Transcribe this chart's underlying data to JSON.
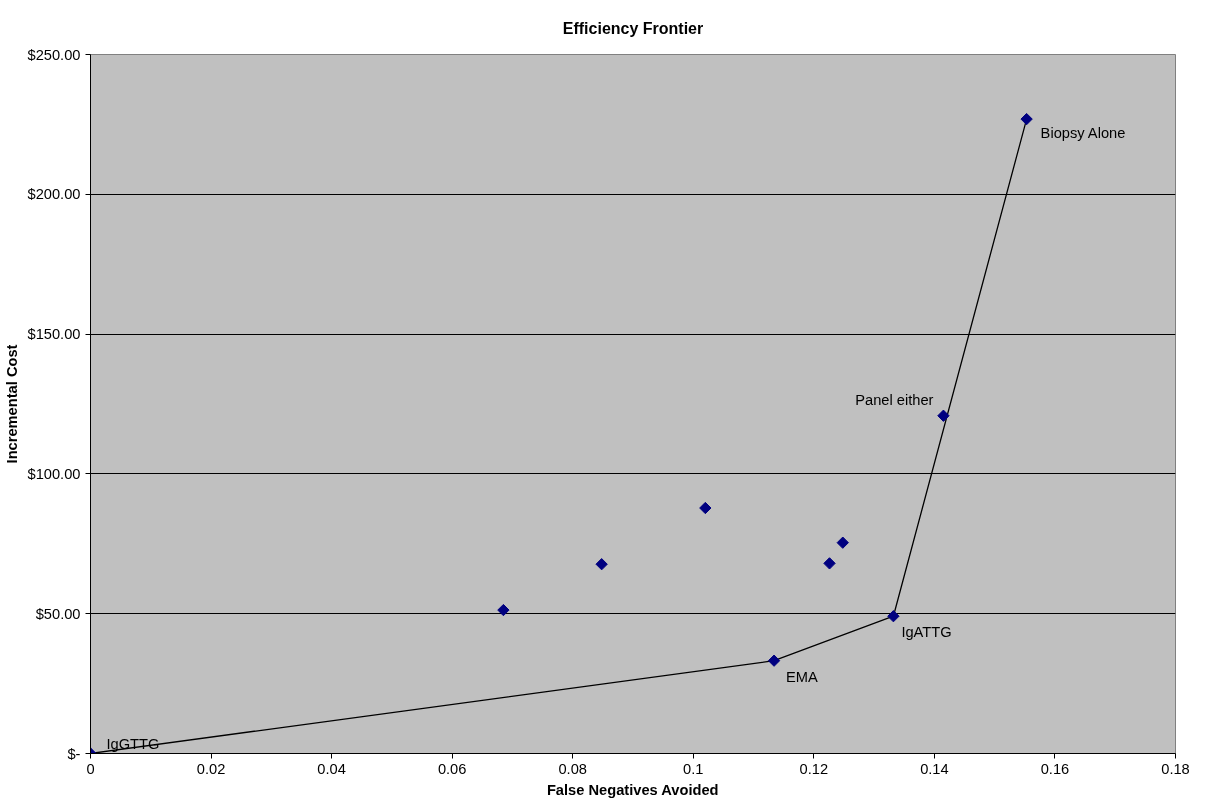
{
  "chart_data": {
    "type": "scatter",
    "title": "Efficiency Frontier",
    "xlabel": "False Negatives Avoided",
    "ylabel": "Incremental Cost",
    "xlim": [
      0,
      0.18
    ],
    "xticks": [
      0,
      0.02,
      0.04,
      0.06,
      0.08,
      0.1,
      0.12,
      0.14,
      0.16,
      0.18
    ],
    "ylim": [
      0,
      250
    ],
    "yticks": [
      {
        "value": 0,
        "label": "$-"
      },
      {
        "value": 50,
        "label": "$50.00"
      },
      {
        "value": 100,
        "label": "$100.00"
      },
      {
        "value": 150,
        "label": "$150.00"
      },
      {
        "value": 200,
        "label": "$200.00"
      },
      {
        "value": 250,
        "label": "$250.00"
      }
    ],
    "grid": "y",
    "marker": "diamond",
    "series": [
      {
        "type": "line",
        "color": "#000000",
        "marker": "none",
        "line_style": "solid",
        "x": [
          0,
          0.1134,
          0.1332,
          0.1553
        ],
        "values": [
          0,
          33.2,
          49.1,
          226.9
        ]
      },
      {
        "color": "#000080",
        "x": [
          0,
          0.0685,
          0.0848,
          0.102,
          0.1226,
          0.1248,
          0.1134,
          0.1332,
          0.1415,
          0.1553
        ],
        "values": [
          0,
          51.3,
          67.7,
          87.8,
          68,
          75.4,
          33.2,
          49.1,
          120.8,
          226.9
        ]
      }
    ],
    "annotations": [
      {
        "text": "IgGTTG",
        "x": 0,
        "y": 0
      },
      {
        "text": "EMA",
        "x": 0.1134,
        "y": 33.2
      },
      {
        "text": "IgATTG",
        "x": 0.1332,
        "y": 49.1
      },
      {
        "text": "Panel either",
        "x": 0.1415,
        "y": 120.8
      },
      {
        "text": "Biopsy Alone",
        "x": 0.1553,
        "y": 226.9
      }
    ]
  }
}
